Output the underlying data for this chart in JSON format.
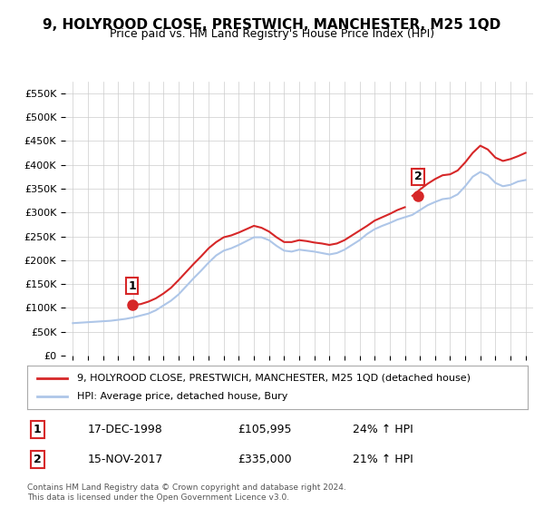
{
  "title": "9, HOLYROOD CLOSE, PRESTWICH, MANCHESTER, M25 1QD",
  "subtitle": "Price paid vs. HM Land Registry's House Price Index (HPI)",
  "ylabel": "",
  "ylim": [
    0,
    575000
  ],
  "yticks": [
    0,
    50000,
    100000,
    150000,
    200000,
    250000,
    300000,
    350000,
    400000,
    450000,
    500000,
    550000
  ],
  "ytick_labels": [
    "£0",
    "£50K",
    "£100K",
    "£150K",
    "£200K",
    "£250K",
    "£300K",
    "£350K",
    "£400K",
    "£450K",
    "£500K",
    "£550K"
  ],
  "hpi_color": "#aec6e8",
  "price_color": "#d62728",
  "marker_color": "#d62728",
  "purchase1_label": "1",
  "purchase2_label": "2",
  "purchase1_date": "17-DEC-1998",
  "purchase1_price": "£105,995",
  "purchase1_hpi": "24% ↑ HPI",
  "purchase2_date": "15-NOV-2017",
  "purchase2_price": "£335,000",
  "purchase2_hpi": "21% ↑ HPI",
  "legend_line1": "9, HOLYROOD CLOSE, PRESTWICH, MANCHESTER, M25 1QD (detached house)",
  "legend_line2": "HPI: Average price, detached house, Bury",
  "footer": "Contains HM Land Registry data © Crown copyright and database right 2024.\nThis data is licensed under the Open Government Licence v3.0.",
  "bg_color": "#ffffff",
  "grid_color": "#cccccc",
  "hpi_years": [
    1995,
    1995.5,
    1996,
    1996.5,
    1997,
    1997.5,
    1998,
    1998.5,
    1999,
    1999.5,
    2000,
    2000.5,
    2001,
    2001.5,
    2002,
    2002.5,
    2003,
    2003.5,
    2004,
    2004.5,
    2005,
    2005.5,
    2006,
    2006.5,
    2007,
    2007.5,
    2008,
    2008.5,
    2009,
    2009.5,
    2010,
    2010.5,
    2011,
    2011.5,
    2012,
    2012.5,
    2013,
    2013.5,
    2014,
    2014.5,
    2015,
    2015.5,
    2016,
    2016.5,
    2017,
    2017.5,
    2018,
    2018.5,
    2019,
    2019.5,
    2020,
    2020.5,
    2021,
    2021.5,
    2022,
    2022.5,
    2023,
    2023.5,
    2024,
    2024.5,
    2025
  ],
  "hpi_values": [
    68000,
    69000,
    70000,
    71000,
    72000,
    73000,
    75000,
    77000,
    80000,
    84000,
    88000,
    95000,
    105000,
    115000,
    128000,
    145000,
    162000,
    178000,
    195000,
    210000,
    220000,
    225000,
    232000,
    240000,
    248000,
    248000,
    242000,
    230000,
    220000,
    218000,
    222000,
    220000,
    218000,
    215000,
    212000,
    215000,
    222000,
    232000,
    242000,
    255000,
    265000,
    272000,
    278000,
    285000,
    290000,
    295000,
    305000,
    315000,
    322000,
    328000,
    330000,
    338000,
    355000,
    375000,
    385000,
    378000,
    362000,
    355000,
    358000,
    365000,
    368000
  ],
  "price_years": [
    1995,
    1995.5,
    1996,
    1996.5,
    1997,
    1997.5,
    1998,
    1998.5,
    1999,
    1999.5,
    2000,
    2000.5,
    2001,
    2001.5,
    2002,
    2002.5,
    2003,
    2003.5,
    2004,
    2004.5,
    2005,
    2005.5,
    2006,
    2006.5,
    2007,
    2007.5,
    2008,
    2008.5,
    2009,
    2009.5,
    2010,
    2010.5,
    2011,
    2011.5,
    2012,
    2012.5,
    2013,
    2013.5,
    2014,
    2014.5,
    2015,
    2015.5,
    2016,
    2016.5,
    2017,
    2017.5,
    2018,
    2018.5,
    2019,
    2019.5,
    2020,
    2020.5,
    2021,
    2021.5,
    2022,
    2022.5,
    2023,
    2023.5,
    2024,
    2024.5,
    2025
  ],
  "price_values": [
    null,
    null,
    null,
    null,
    null,
    null,
    null,
    null,
    105995,
    108000,
    113000,
    120000,
    130000,
    142000,
    158000,
    175000,
    192000,
    208000,
    225000,
    238000,
    248000,
    252000,
    258000,
    265000,
    272000,
    268000,
    260000,
    248000,
    238000,
    238000,
    242000,
    240000,
    237000,
    235000,
    232000,
    235000,
    242000,
    252000,
    262000,
    272000,
    283000,
    290000,
    297000,
    305000,
    311000,
    null,
    null,
    null,
    null,
    null,
    null,
    null,
    null,
    null,
    null,
    null,
    null,
    null,
    null,
    null,
    null
  ],
  "price_values2": [
    null,
    null,
    null,
    null,
    null,
    null,
    null,
    null,
    null,
    null,
    null,
    null,
    null,
    null,
    null,
    null,
    null,
    null,
    null,
    null,
    null,
    null,
    null,
    null,
    null,
    null,
    null,
    null,
    null,
    null,
    null,
    null,
    null,
    null,
    null,
    null,
    null,
    null,
    null,
    null,
    null,
    null,
    null,
    null,
    null,
    335000,
    348000,
    360000,
    370000,
    378000,
    380000,
    388000,
    405000,
    425000,
    440000,
    432000,
    415000,
    408000,
    412000,
    418000,
    425000
  ],
  "purchase1_x": 1998.92,
  "purchase1_y": 105995,
  "purchase2_x": 2017.88,
  "purchase2_y": 335000,
  "xlim": [
    1994.5,
    2025.5
  ],
  "xtick_years": [
    1995,
    1996,
    1997,
    1998,
    1999,
    2000,
    2001,
    2002,
    2003,
    2004,
    2005,
    2006,
    2007,
    2008,
    2009,
    2010,
    2011,
    2012,
    2013,
    2014,
    2015,
    2016,
    2017,
    2018,
    2019,
    2020,
    2021,
    2022,
    2023,
    2024,
    2025
  ]
}
